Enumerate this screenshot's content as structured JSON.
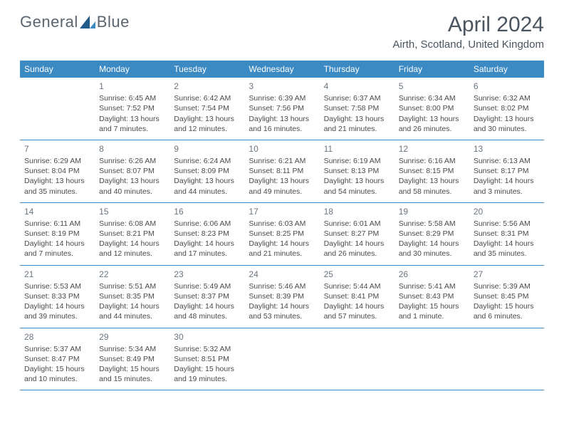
{
  "logo": {
    "text1": "General",
    "text2": "Blue"
  },
  "title": "April 2024",
  "location": "Airth, Scotland, United Kingdom",
  "header_bg": "#3b8ac4",
  "day_names": [
    "Sunday",
    "Monday",
    "Tuesday",
    "Wednesday",
    "Thursday",
    "Friday",
    "Saturday"
  ],
  "weeks": [
    [
      {
        "num": "",
        "empty": true
      },
      {
        "num": "1",
        "sunrise": "6:45 AM",
        "sunset": "7:52 PM",
        "daylight": "13 hours and 7 minutes."
      },
      {
        "num": "2",
        "sunrise": "6:42 AM",
        "sunset": "7:54 PM",
        "daylight": "13 hours and 12 minutes."
      },
      {
        "num": "3",
        "sunrise": "6:39 AM",
        "sunset": "7:56 PM",
        "daylight": "13 hours and 16 minutes."
      },
      {
        "num": "4",
        "sunrise": "6:37 AM",
        "sunset": "7:58 PM",
        "daylight": "13 hours and 21 minutes."
      },
      {
        "num": "5",
        "sunrise": "6:34 AM",
        "sunset": "8:00 PM",
        "daylight": "13 hours and 26 minutes."
      },
      {
        "num": "6",
        "sunrise": "6:32 AM",
        "sunset": "8:02 PM",
        "daylight": "13 hours and 30 minutes."
      }
    ],
    [
      {
        "num": "7",
        "sunrise": "6:29 AM",
        "sunset": "8:04 PM",
        "daylight": "13 hours and 35 minutes."
      },
      {
        "num": "8",
        "sunrise": "6:26 AM",
        "sunset": "8:07 PM",
        "daylight": "13 hours and 40 minutes."
      },
      {
        "num": "9",
        "sunrise": "6:24 AM",
        "sunset": "8:09 PM",
        "daylight": "13 hours and 44 minutes."
      },
      {
        "num": "10",
        "sunrise": "6:21 AM",
        "sunset": "8:11 PM",
        "daylight": "13 hours and 49 minutes."
      },
      {
        "num": "11",
        "sunrise": "6:19 AM",
        "sunset": "8:13 PM",
        "daylight": "13 hours and 54 minutes."
      },
      {
        "num": "12",
        "sunrise": "6:16 AM",
        "sunset": "8:15 PM",
        "daylight": "13 hours and 58 minutes."
      },
      {
        "num": "13",
        "sunrise": "6:13 AM",
        "sunset": "8:17 PM",
        "daylight": "14 hours and 3 minutes."
      }
    ],
    [
      {
        "num": "14",
        "sunrise": "6:11 AM",
        "sunset": "8:19 PM",
        "daylight": "14 hours and 7 minutes."
      },
      {
        "num": "15",
        "sunrise": "6:08 AM",
        "sunset": "8:21 PM",
        "daylight": "14 hours and 12 minutes."
      },
      {
        "num": "16",
        "sunrise": "6:06 AM",
        "sunset": "8:23 PM",
        "daylight": "14 hours and 17 minutes."
      },
      {
        "num": "17",
        "sunrise": "6:03 AM",
        "sunset": "8:25 PM",
        "daylight": "14 hours and 21 minutes."
      },
      {
        "num": "18",
        "sunrise": "6:01 AM",
        "sunset": "8:27 PM",
        "daylight": "14 hours and 26 minutes."
      },
      {
        "num": "19",
        "sunrise": "5:58 AM",
        "sunset": "8:29 PM",
        "daylight": "14 hours and 30 minutes."
      },
      {
        "num": "20",
        "sunrise": "5:56 AM",
        "sunset": "8:31 PM",
        "daylight": "14 hours and 35 minutes."
      }
    ],
    [
      {
        "num": "21",
        "sunrise": "5:53 AM",
        "sunset": "8:33 PM",
        "daylight": "14 hours and 39 minutes."
      },
      {
        "num": "22",
        "sunrise": "5:51 AM",
        "sunset": "8:35 PM",
        "daylight": "14 hours and 44 minutes."
      },
      {
        "num": "23",
        "sunrise": "5:49 AM",
        "sunset": "8:37 PM",
        "daylight": "14 hours and 48 minutes."
      },
      {
        "num": "24",
        "sunrise": "5:46 AM",
        "sunset": "8:39 PM",
        "daylight": "14 hours and 53 minutes."
      },
      {
        "num": "25",
        "sunrise": "5:44 AM",
        "sunset": "8:41 PM",
        "daylight": "14 hours and 57 minutes."
      },
      {
        "num": "26",
        "sunrise": "5:41 AM",
        "sunset": "8:43 PM",
        "daylight": "15 hours and 1 minute."
      },
      {
        "num": "27",
        "sunrise": "5:39 AM",
        "sunset": "8:45 PM",
        "daylight": "15 hours and 6 minutes."
      }
    ],
    [
      {
        "num": "28",
        "sunrise": "5:37 AM",
        "sunset": "8:47 PM",
        "daylight": "15 hours and 10 minutes."
      },
      {
        "num": "29",
        "sunrise": "5:34 AM",
        "sunset": "8:49 PM",
        "daylight": "15 hours and 15 minutes."
      },
      {
        "num": "30",
        "sunrise": "5:32 AM",
        "sunset": "8:51 PM",
        "daylight": "15 hours and 19 minutes."
      },
      {
        "num": "",
        "empty": true
      },
      {
        "num": "",
        "empty": true
      },
      {
        "num": "",
        "empty": true
      },
      {
        "num": "",
        "empty": true
      }
    ]
  ]
}
